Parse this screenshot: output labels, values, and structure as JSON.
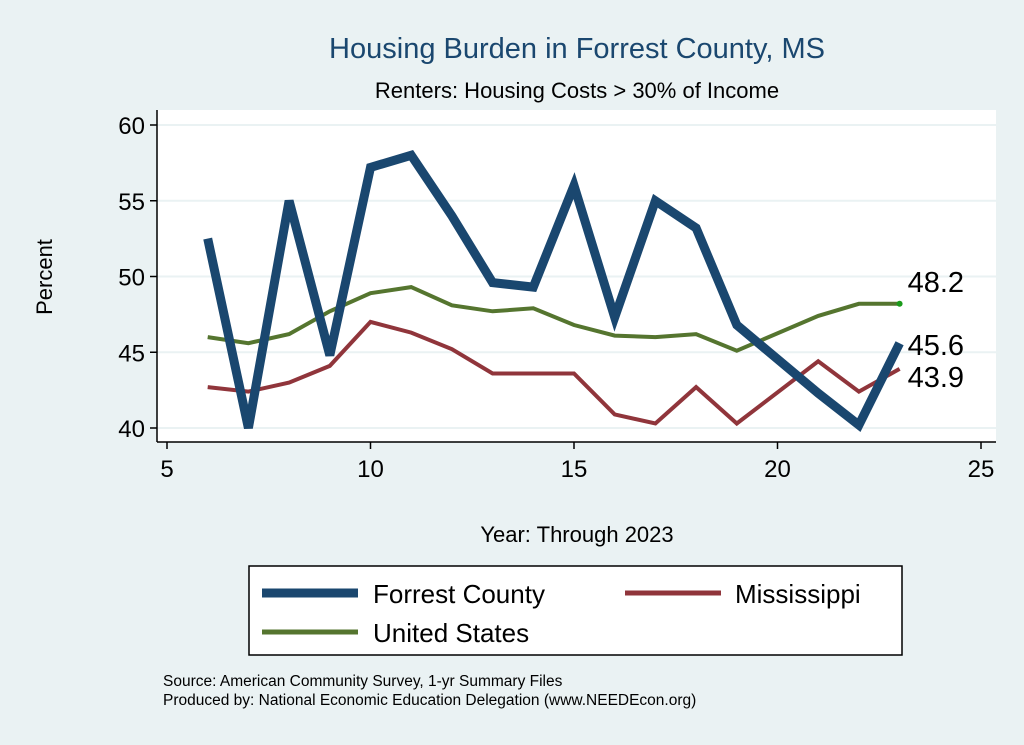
{
  "chart_data": {
    "type": "line",
    "title": "Housing Burden in Forrest County, MS",
    "subtitle": "Renters: Housing Costs > 30% of Income",
    "xlabel": "Year: Through 2023",
    "ylabel": "Percent",
    "xlim": [
      5,
      25
    ],
    "ylim": [
      40,
      60
    ],
    "xticks": [
      5,
      10,
      15,
      20,
      25
    ],
    "yticks": [
      40,
      45,
      50,
      55,
      60
    ],
    "grid": true,
    "legend_placement": "bottom",
    "x": [
      6,
      7,
      8,
      9,
      10,
      11,
      12,
      13,
      14,
      15,
      16,
      17,
      18,
      19,
      20,
      21,
      22,
      23
    ],
    "series": [
      {
        "name": "Forrest County",
        "color": "#1a476f",
        "width": 9,
        "values": [
          52.5,
          40.0,
          55.0,
          44.8,
          57.2,
          58.0,
          54.0,
          49.6,
          49.3,
          56.0,
          47.3,
          55.0,
          53.2,
          46.8,
          null,
          42.3,
          40.2,
          45.6
        ],
        "end_label": "45.6"
      },
      {
        "name": "Mississippi",
        "color": "#90353b",
        "width": 4,
        "values": [
          42.7,
          42.4,
          43.0,
          44.1,
          47.0,
          46.3,
          45.2,
          43.6,
          43.6,
          43.6,
          40.9,
          40.3,
          42.7,
          40.3,
          null,
          44.4,
          42.4,
          43.9
        ],
        "end_label": "43.9"
      },
      {
        "name": "United States",
        "color": "#55752f",
        "width": 4,
        "values": [
          46.0,
          45.6,
          46.2,
          47.7,
          48.9,
          49.3,
          48.1,
          47.7,
          47.9,
          46.8,
          46.1,
          46.0,
          46.2,
          45.1,
          null,
          47.4,
          48.2,
          48.2
        ],
        "end_label": "48.2"
      }
    ]
  },
  "footer": {
    "source": "Source: American Community Survey, 1-yr Summary Files",
    "produced": "Produced by: National Economic Education Delegation (www.NEEDEcon.org)"
  }
}
